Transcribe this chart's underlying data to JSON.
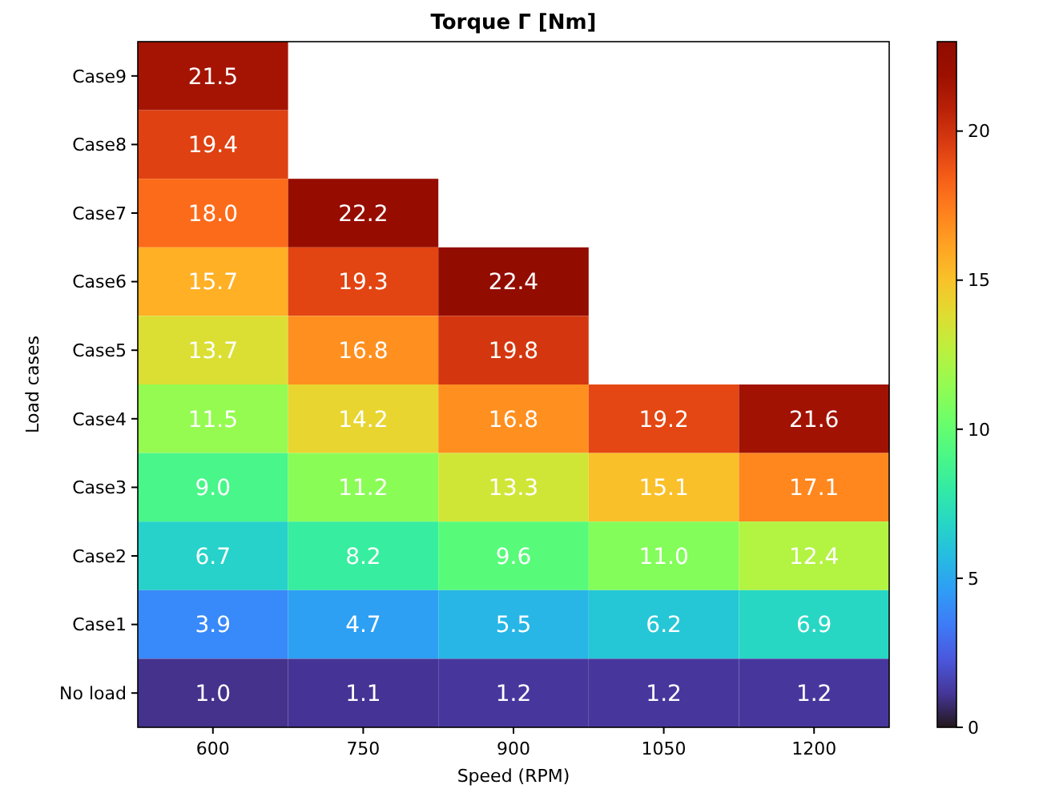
{
  "chart_data": {
    "type": "heatmap",
    "title": "Torque Γ [Nm]",
    "xlabel": "Speed (RPM)",
    "ylabel": "Load cases",
    "categories": [
      "600",
      "750",
      "900",
      "1050",
      "1200"
    ],
    "y_categories": [
      "Case9",
      "Case8",
      "Case7",
      "Case6",
      "Case5",
      "Case4",
      "Case3",
      "Case2",
      "Case1",
      "No load"
    ],
    "cells": [
      [
        21.5,
        null,
        null,
        null,
        null
      ],
      [
        19.4,
        null,
        null,
        null,
        null
      ],
      [
        18.0,
        22.2,
        null,
        null,
        null
      ],
      [
        15.7,
        19.3,
        22.4,
        null,
        null
      ],
      [
        13.7,
        16.8,
        19.8,
        null,
        null
      ],
      [
        11.5,
        14.2,
        16.8,
        19.2,
        21.6
      ],
      [
        9.0,
        11.2,
        13.3,
        15.1,
        17.1
      ],
      [
        6.7,
        8.2,
        9.6,
        11.0,
        12.4
      ],
      [
        3.9,
        4.7,
        5.5,
        6.2,
        6.9
      ],
      [
        1.0,
        1.1,
        1.2,
        1.2,
        1.2
      ]
    ],
    "cell_labels": [
      [
        "21.5",
        null,
        null,
        null,
        null
      ],
      [
        "19.4",
        null,
        null,
        null,
        null
      ],
      [
        "18.0",
        "22.2",
        null,
        null,
        null
      ],
      [
        "15.7",
        "19.3",
        "22.4",
        null,
        null
      ],
      [
        "13.7",
        "16.8",
        "19.8",
        null,
        null
      ],
      [
        "11.5",
        "14.2",
        "16.8",
        "19.2",
        "21.6"
      ],
      [
        "9.0",
        "11.2",
        "13.3",
        "15.1",
        "17.1"
      ],
      [
        "6.7",
        "8.2",
        "9.6",
        "11.0",
        "12.4"
      ],
      [
        "3.9",
        "4.7",
        "5.5",
        "6.2",
        "6.9"
      ],
      [
        "1.0",
        "1.1",
        "1.2",
        "1.2",
        "1.2"
      ]
    ],
    "clim": [
      0,
      23
    ],
    "cticks": [
      0,
      5,
      10,
      15,
      20
    ]
  }
}
